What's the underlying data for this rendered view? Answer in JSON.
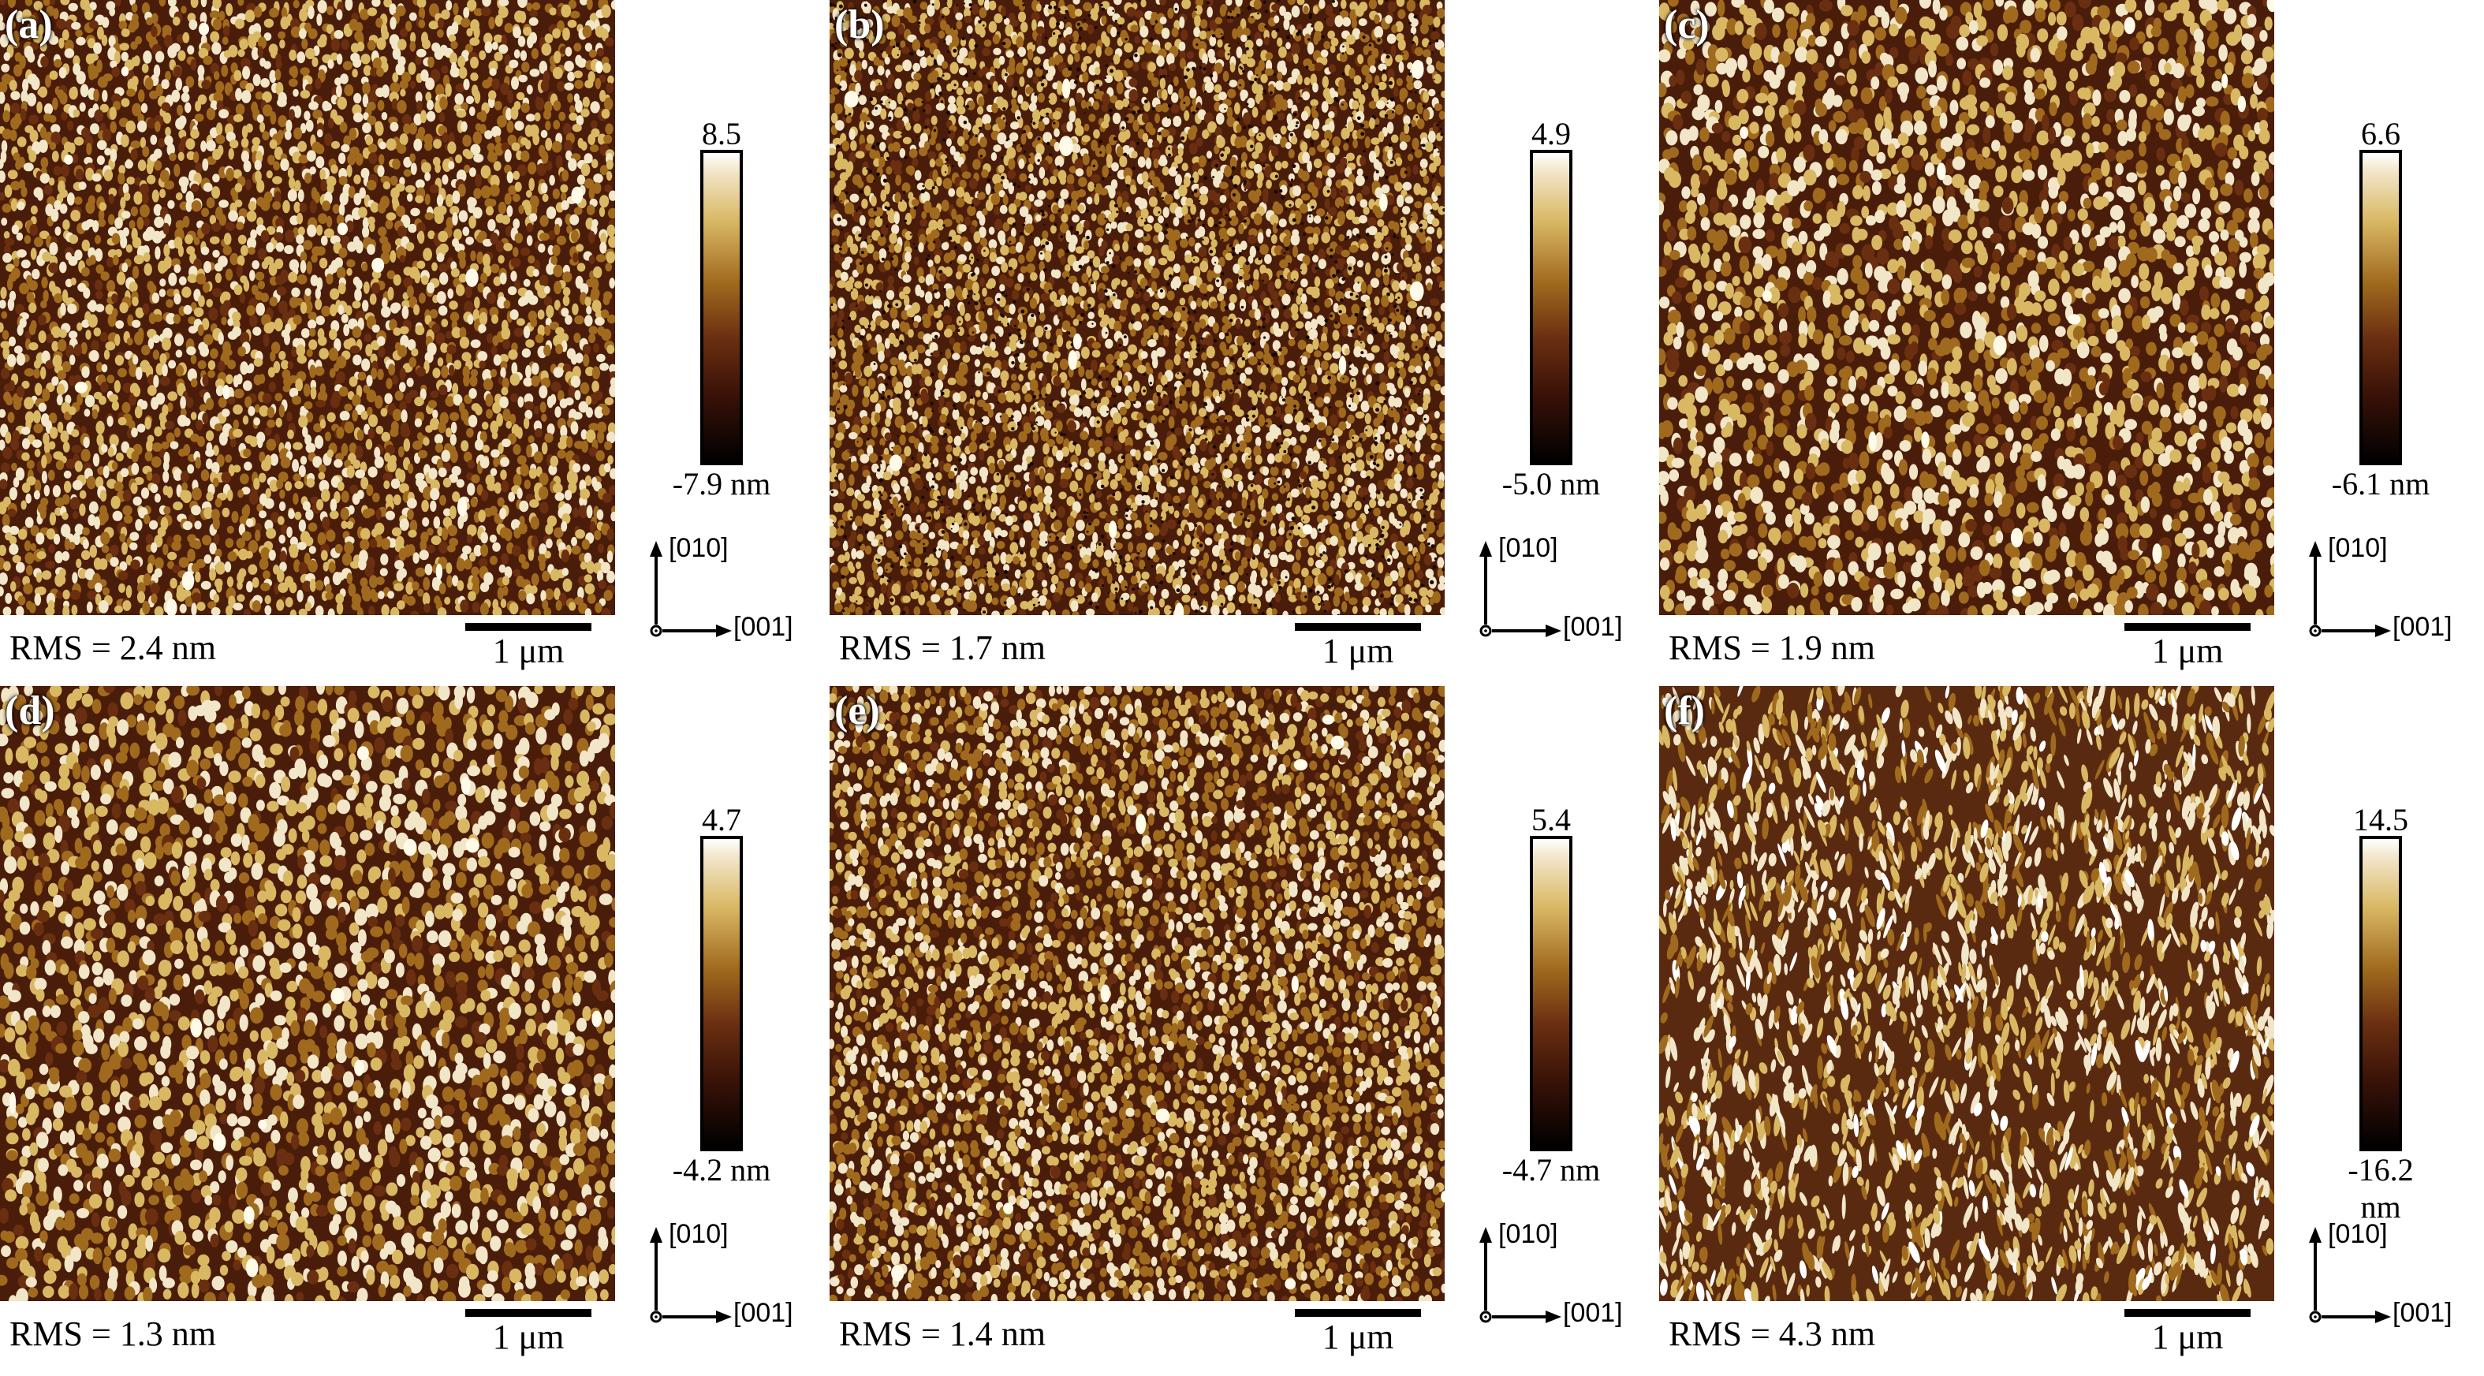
{
  "figure": {
    "panels": [
      {
        "id": "a",
        "label": "(a)",
        "cmax": "8.5 nm",
        "cmin": "-7.9 nm",
        "rms": "RMS = 2.4 nm",
        "scale": "1 μm",
        "axis_v": "[010]",
        "axis_h": "[001]",
        "texture": "grains"
      },
      {
        "id": "b",
        "label": "(b)",
        "cmax": "4.9 nm",
        "cmin": "-5.0 nm",
        "rms": "RMS = 1.7  nm",
        "scale": "1 μm",
        "axis_v": "[010]",
        "axis_h": "[001]",
        "texture": "pits"
      },
      {
        "id": "c",
        "label": "(c)",
        "cmax": "6.6 nm",
        "cmin": "-6.1 nm",
        "rms": "RMS = 1.9 nm",
        "scale": "1 μm",
        "axis_v": "[010]",
        "axis_h": "[001]",
        "texture": "coarse"
      },
      {
        "id": "d",
        "label": "(d)",
        "cmax": "4.7 nm",
        "cmin": "-4.2 nm",
        "rms": "RMS = 1.3 nm",
        "scale": "1 μm",
        "axis_v": "[010]",
        "axis_h": "[001]",
        "texture": "coarse"
      },
      {
        "id": "e",
        "label": "(e)",
        "cmax": "5.4 nm",
        "cmin": "-4.7 nm",
        "rms": "RMS = 1.4 nm",
        "scale": "1 μm",
        "axis_v": "[010]",
        "axis_h": "[001]",
        "texture": "grains"
      },
      {
        "id": "f",
        "label": "(f)",
        "cmax": "14.5 nm",
        "cmin": "-16.2 nm",
        "rms": "RMS = 4.3 nm",
        "scale": "1 μm",
        "axis_v": "[010]",
        "axis_h": "[001]",
        "texture": "worms"
      }
    ],
    "colormap": [
      "#000000",
      "#3a1208",
      "#6a2f10",
      "#a06a1e",
      "#d9b864",
      "#f2e6c9",
      "#ffffff"
    ]
  }
}
